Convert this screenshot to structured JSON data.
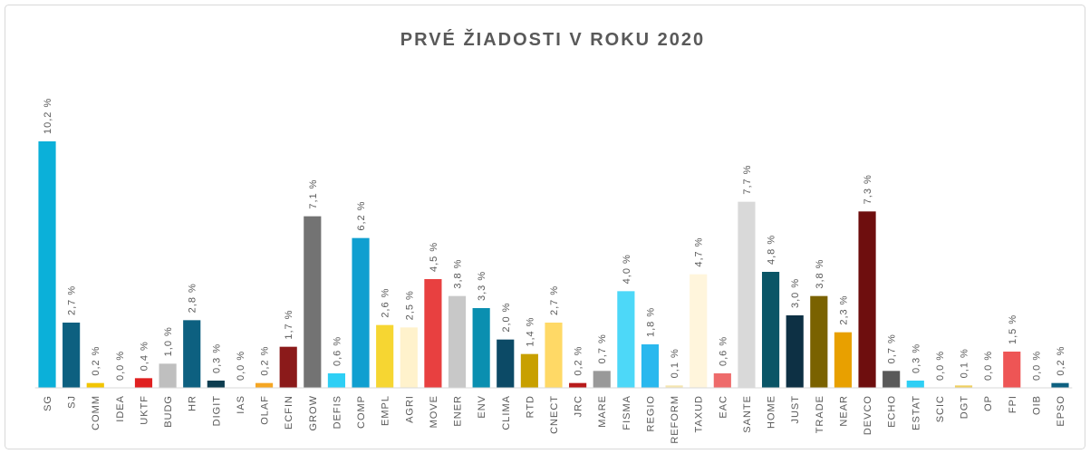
{
  "chart_data": {
    "type": "bar",
    "title": "PRVÉ ŽIADOSTI V ROKU 2020",
    "categories": [
      "SG",
      "SJ",
      "COMM",
      "IDEA",
      "UKTF",
      "BUDG",
      "HR",
      "DIGIT",
      "IAS",
      "OLAF",
      "ECFIN",
      "GROW",
      "DEFIS",
      "COMP",
      "EMPL",
      "AGRI",
      "MOVE",
      "ENER",
      "ENV",
      "CLIMA",
      "RTD",
      "CNECT",
      "JRC",
      "MARE",
      "FISMA",
      "REGIO",
      "REFORM",
      "TAXUD",
      "EAC",
      "SANTE",
      "HOME",
      "JUST",
      "TRADE",
      "NEAR",
      "DEVCO",
      "ECHO",
      "ESTAT",
      "SCIC",
      "DGT",
      "OP",
      "FPI",
      "OIB",
      "EPSO"
    ],
    "values": [
      10.2,
      2.7,
      0.2,
      0.0,
      0.4,
      1.0,
      2.8,
      0.3,
      0.0,
      0.2,
      1.7,
      7.1,
      0.6,
      6.2,
      2.6,
      2.5,
      4.5,
      3.8,
      3.3,
      2.0,
      1.4,
      2.7,
      0.2,
      0.7,
      4.0,
      1.8,
      0.1,
      4.7,
      0.6,
      7.7,
      4.8,
      3.0,
      3.8,
      2.3,
      7.3,
      0.7,
      0.3,
      0.0,
      0.1,
      0.0,
      1.5,
      0.0,
      0.2
    ],
    "value_labels": [
      "10,2 %",
      "2,7 %",
      "0,2 %",
      "0,0 %",
      "0,4 %",
      "1,0 %",
      "2,8 %",
      "0,3 %",
      "0,0 %",
      "0,2 %",
      "1,7 %",
      "7,1 %",
      "0,6 %",
      "6,2 %",
      "2,6 %",
      "2,5 %",
      "4,5 %",
      "3,8 %",
      "3,3 %",
      "2,0 %",
      "1,4 %",
      "2,7 %",
      "0,2 %",
      "0,7 %",
      "4,0 %",
      "1,8 %",
      "0,1 %",
      "4,7 %",
      "0,6 %",
      "7,7 %",
      "4,8 %",
      "3,0 %",
      "3,8 %",
      "2,3 %",
      "7,3 %",
      "0,7 %",
      "0,3 %",
      "0,0 %",
      "0,1 %",
      "0,0 %",
      "1,5 %",
      "0,0 %",
      "0,2 %"
    ],
    "colors": [
      "#0bb0d9",
      "#0d6080",
      "#f2c500",
      "#cccccc",
      "#e02020",
      "#bfbfbf",
      "#0d6080",
      "#0d3d50",
      "#c8a000",
      "#f5a623",
      "#8b1a1a",
      "#737373",
      "#2ecff5",
      "#0f9fd0",
      "#f6d632",
      "#fff2cc",
      "#e84040",
      "#c8c8c8",
      "#0a8fb0",
      "#0c4a66",
      "#c8a000",
      "#ffd966",
      "#b81a1a",
      "#999999",
      "#4dd8f8",
      "#2ab8ee",
      "#f5e5b0",
      "#fff5dc",
      "#ee6b6b",
      "#d9d9d9",
      "#0a5566",
      "#0d3044",
      "#7a6200",
      "#e8a000",
      "#6e0e0e",
      "#595959",
      "#2ecff5",
      "#66ccee",
      "#f0d060",
      "#cccccc",
      "#ee5555",
      "#dddddd",
      "#0d6080"
    ],
    "ylim": [
      0,
      12
    ]
  }
}
